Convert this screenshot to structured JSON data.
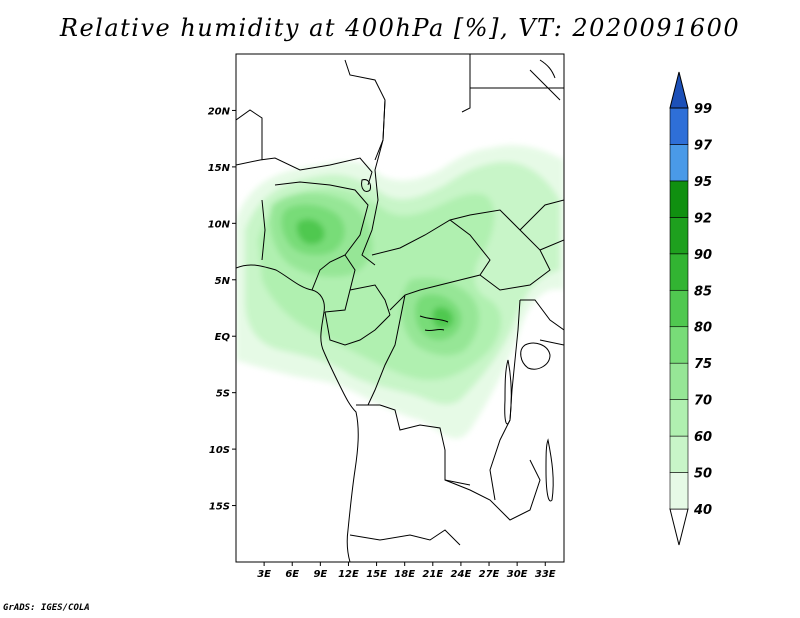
{
  "title": "Relative humidity at 400hPa [%], VT: 2020091600",
  "credit": "GrADS: IGES/COLA",
  "map": {
    "lon_range": [
      0,
      35
    ],
    "lat_range": [
      -20,
      25
    ],
    "lat_ticks": [
      {
        "value": 20,
        "label": "20N"
      },
      {
        "value": 15,
        "label": "15N"
      },
      {
        "value": 10,
        "label": "10N"
      },
      {
        "value": 5,
        "label": "5N"
      },
      {
        "value": 0,
        "label": "EQ"
      },
      {
        "value": -5,
        "label": "5S"
      },
      {
        "value": -10,
        "label": "10S"
      },
      {
        "value": -15,
        "label": "15S"
      }
    ],
    "lon_ticks": [
      {
        "value": 3,
        "label": "3E"
      },
      {
        "value": 6,
        "label": "6E"
      },
      {
        "value": 9,
        "label": "9E"
      },
      {
        "value": 12,
        "label": "12E"
      },
      {
        "value": 15,
        "label": "15E"
      },
      {
        "value": 18,
        "label": "18E"
      },
      {
        "value": 21,
        "label": "21E"
      },
      {
        "value": 24,
        "label": "24E"
      },
      {
        "value": 27,
        "label": "27E"
      },
      {
        "value": 30,
        "label": "30E"
      },
      {
        "value": 33,
        "label": "33E"
      }
    ]
  },
  "colorbar": {
    "levels": [
      {
        "label": "40",
        "color": "#ffffff"
      },
      {
        "label": "50",
        "color": "#e6fae6"
      },
      {
        "label": "60",
        "color": "#c8f5c8"
      },
      {
        "label": "70",
        "color": "#b0f0b0"
      },
      {
        "label": "75",
        "color": "#96e696"
      },
      {
        "label": "80",
        "color": "#78dc78"
      },
      {
        "label": "85",
        "color": "#50c850"
      },
      {
        "label": "90",
        "color": "#32b432"
      },
      {
        "label": "92",
        "color": "#1ea01e"
      },
      {
        "label": "95",
        "color": "#109010"
      },
      {
        "label": "97",
        "color": "#4a9ae8"
      },
      {
        "label": "99",
        "color": "#2e6fd8"
      }
    ],
    "top_color": "#1c50b8"
  }
}
